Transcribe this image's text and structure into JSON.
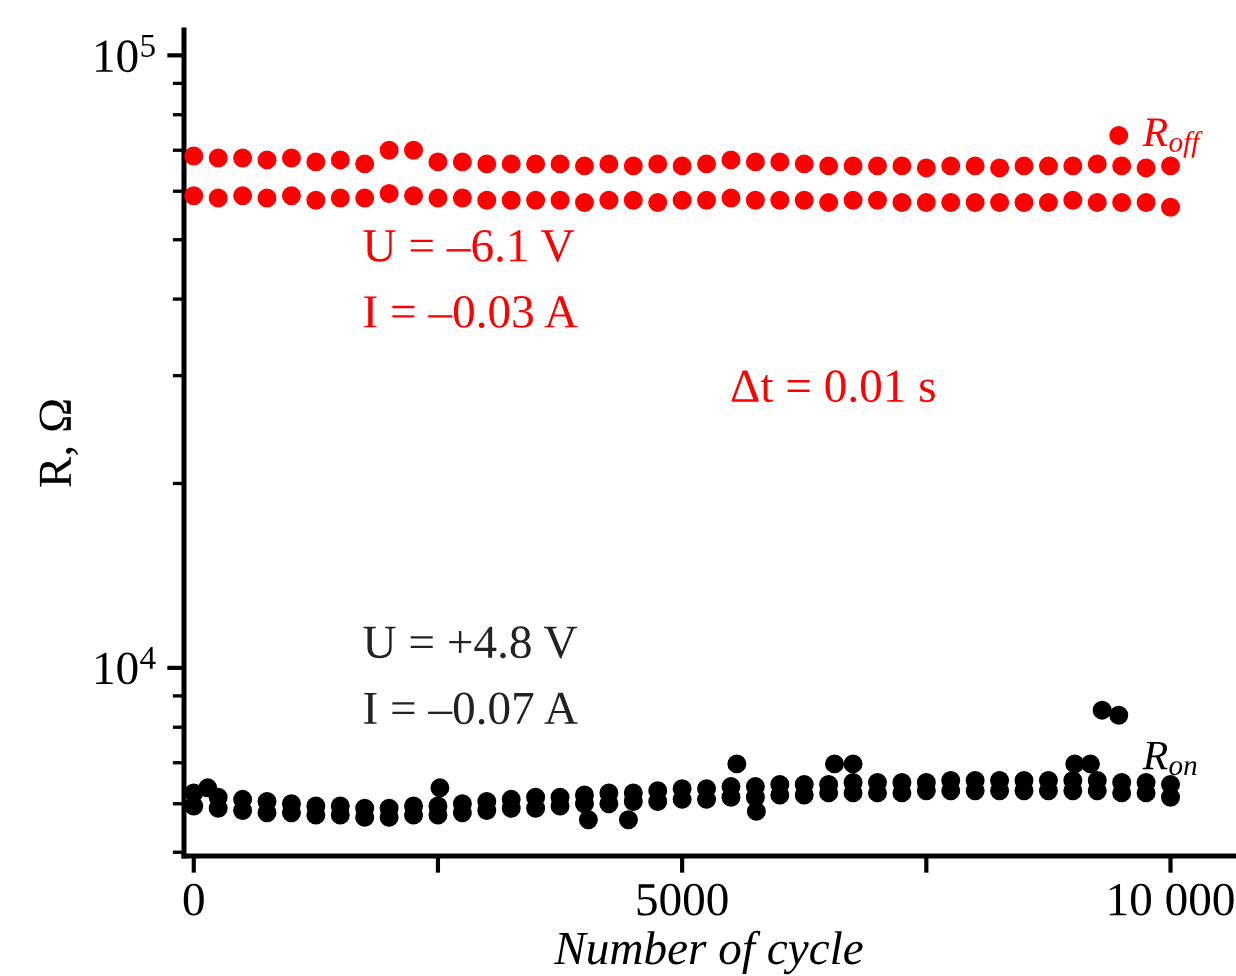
{
  "chart_data": {
    "type": "scatter",
    "xlabel": "Number of cycle",
    "ylabel": "R, Ω",
    "log": "y",
    "xlim": [
      -100,
      10650
    ],
    "ylim": [
      4930,
      110000
    ],
    "xticks": [
      0,
      {
        "value": 2500,
        "label": null
      },
      5000,
      {
        "value": 7500,
        "label": null
      },
      {
        "value": 10000,
        "label": "10 000"
      }
    ],
    "yticks": [
      {
        "value": 10000,
        "label": "10$^{4}$"
      },
      {
        "value": 100000,
        "label": "10$^{5}$"
      }
    ],
    "grid": false,
    "legend": false,
    "marker": "circle",
    "annotations": [
      "U = –6.1 V",
      "I = –0.03 A",
      "Δt = 0.01 s",
      "U = +4.8 V",
      "I = –0.07 A"
    ],
    "series": [
      {
        "name": "R$_{off}$",
        "color": "#ff0000",
        "x": [
          0,
          0,
          250,
          250,
          500,
          500,
          750,
          750,
          1000,
          1000,
          1250,
          1250,
          1500,
          1500,
          1750,
          1750,
          2000,
          2000,
          2250,
          2250,
          2500,
          2500,
          2750,
          2750,
          3000,
          3000,
          3250,
          3250,
          3500,
          3500,
          3750,
          3750,
          4000,
          4000,
          4250,
          4250,
          4500,
          4500,
          4750,
          4750,
          5000,
          5000,
          5250,
          5250,
          5500,
          5500,
          5750,
          5750,
          6000,
          6000,
          6250,
          6250,
          6500,
          6500,
          6750,
          6750,
          7000,
          7000,
          7250,
          7250,
          7500,
          7500,
          7750,
          7750,
          8000,
          8000,
          8250,
          8250,
          8500,
          8500,
          8750,
          8750,
          9000,
          9000,
          9250,
          9250,
          9470,
          9500,
          9500,
          9750,
          9750,
          10000,
          10000
        ],
        "values": [
          68500,
          59000,
          68000,
          58500,
          68000,
          59000,
          67500,
          58500,
          68000,
          59000,
          67000,
          58000,
          67500,
          58500,
          66500,
          58500,
          70000,
          59500,
          70000,
          59000,
          67000,
          58500,
          67000,
          58500,
          66500,
          58000,
          66500,
          58000,
          66500,
          58000,
          66500,
          58000,
          66000,
          57500,
          66500,
          58000,
          66000,
          58000,
          66500,
          57500,
          66000,
          58000,
          66500,
          58000,
          67500,
          58500,
          67000,
          58000,
          67000,
          58000,
          66500,
          58000,
          66000,
          57500,
          66000,
          58000,
          66000,
          58000,
          66000,
          57500,
          65500,
          57500,
          66000,
          57500,
          66000,
          57500,
          65500,
          57500,
          66000,
          57500,
          66000,
          57500,
          66000,
          58000,
          66500,
          57500,
          74000,
          66000,
          57500,
          65500,
          57500,
          66000,
          56500
        ]
      },
      {
        "name": "R$_{on}$",
        "color": "#000000",
        "x": [
          0,
          0,
          143,
          250,
          250,
          500,
          500,
          750,
          750,
          1000,
          1000,
          1250,
          1250,
          1500,
          1500,
          1750,
          1750,
          2000,
          2000,
          2250,
          2250,
          2500,
          2500,
          2520,
          2750,
          2750,
          3000,
          3000,
          3250,
          3250,
          3500,
          3500,
          3750,
          3750,
          4000,
          4000,
          4040,
          4250,
          4250,
          4450,
          4500,
          4500,
          4750,
          4750,
          5000,
          5000,
          5250,
          5250,
          5500,
          5500,
          5560,
          5760,
          5750,
          5750,
          6000,
          6000,
          6250,
          6250,
          6500,
          6500,
          6560,
          6750,
          6750,
          6750,
          7000,
          7000,
          7250,
          7250,
          7500,
          7500,
          7750,
          7750,
          8000,
          8000,
          8250,
          8250,
          8500,
          8500,
          8750,
          8750,
          9000,
          9000,
          9020,
          9180,
          9250,
          9250,
          9300,
          9470,
          9500,
          9500,
          9750,
          9750,
          10000,
          10000
        ],
        "values": [
          6250,
          5950,
          6370,
          6150,
          5900,
          6100,
          5850,
          6050,
          5800,
          6000,
          5800,
          5950,
          5750,
          5950,
          5750,
          5900,
          5700,
          5900,
          5700,
          5950,
          5750,
          5950,
          5750,
          6370,
          6000,
          5800,
          6050,
          5850,
          6100,
          5900,
          6150,
          5900,
          6150,
          5950,
          6200,
          6000,
          5650,
          6250,
          6000,
          5650,
          6250,
          6050,
          6300,
          6050,
          6350,
          6100,
          6350,
          6100,
          6400,
          6150,
          6970,
          5830,
          6400,
          6150,
          6450,
          6200,
          6450,
          6200,
          6450,
          6250,
          6970,
          6970,
          6500,
          6250,
          6500,
          6250,
          6500,
          6250,
          6500,
          6300,
          6550,
          6300,
          6550,
          6300,
          6550,
          6300,
          6550,
          6300,
          6550,
          6300,
          6550,
          6300,
          6970,
          6970,
          6550,
          6300,
          8530,
          8370,
          6500,
          6250,
          6500,
          6250,
          6450,
          6150
        ]
      }
    ]
  }
}
